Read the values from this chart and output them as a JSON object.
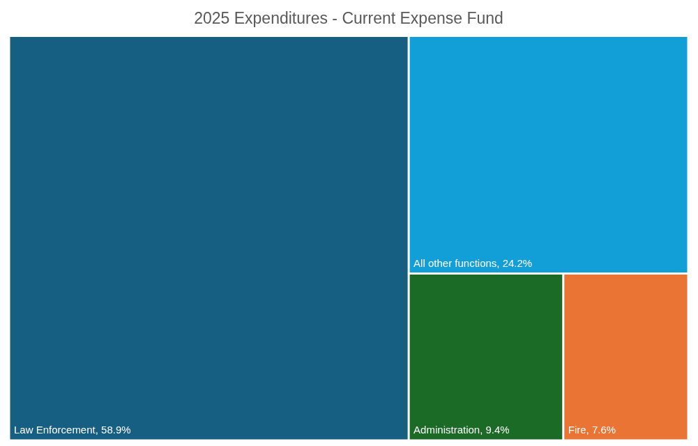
{
  "chart_data": {
    "type": "other",
    "title": "2025 Expenditures - Current Expense Fund",
    "categories": [
      "Law Enforcement",
      "All other functions",
      "Administration",
      "Fire"
    ],
    "values": [
      58.9,
      24.2,
      9.4,
      7.6
    ],
    "value_labels": [
      ", 58.9%",
      ", 24.2%",
      ", 9.4%",
      ", 7.6%"
    ],
    "colors": [
      "#175f82",
      "#129fd8",
      "#1b6a26",
      "#e97434"
    ]
  }
}
